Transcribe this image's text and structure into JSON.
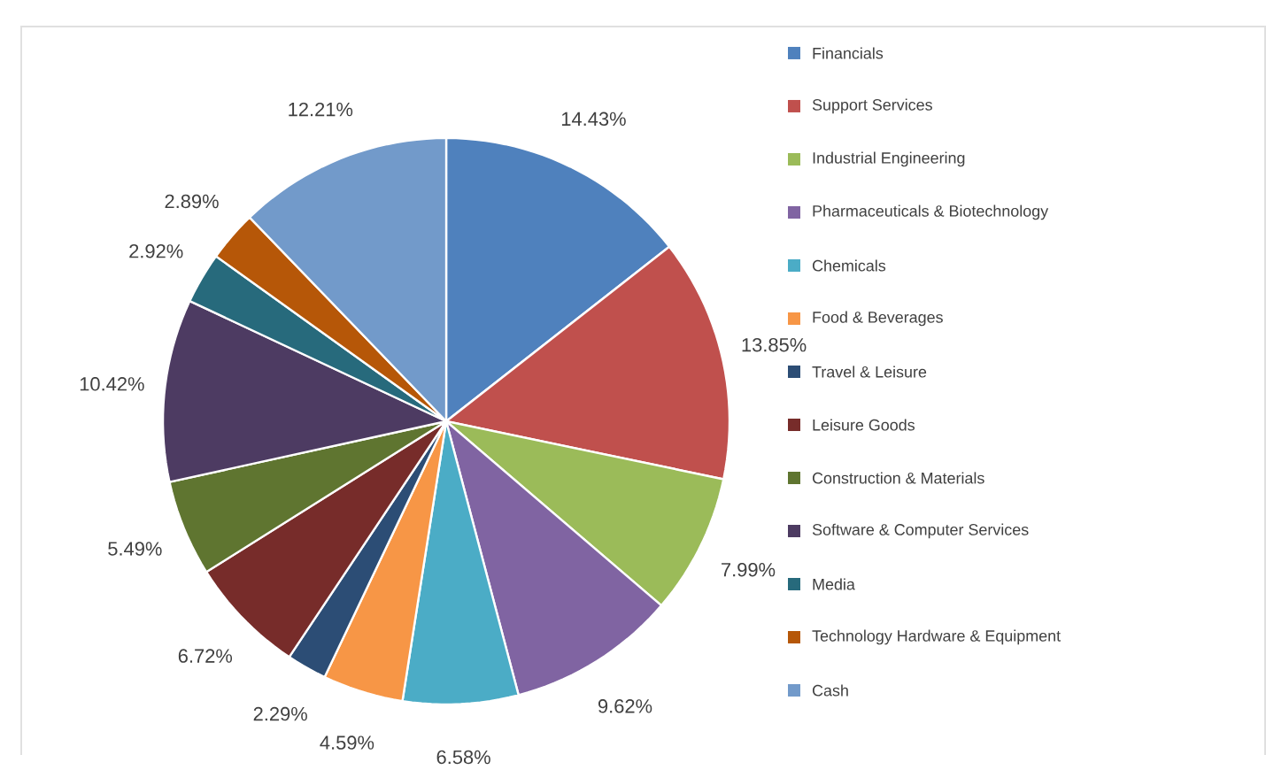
{
  "chart_data": {
    "type": "pie",
    "categories": [
      "Financials",
      "Support Services",
      "Industrial Engineering",
      "Pharmaceuticals & Biotechnology",
      "Chemicals",
      "Food & Beverages",
      "Travel & Leisure",
      "Leisure Goods",
      "Construction & Materials",
      "Software & Computer Services",
      "Media",
      "Technology Hardware & Equipment",
      "Cash"
    ],
    "values": [
      14.43,
      13.85,
      7.99,
      9.62,
      6.58,
      4.59,
      2.29,
      6.72,
      5.49,
      10.42,
      2.92,
      2.89,
      12.21
    ],
    "value_labels": [
      "14.43%",
      "13.85%",
      "7.99%",
      "9.62%",
      "6.58%",
      "4.59%",
      "2.29%",
      "6.72%",
      "5.49%",
      "10.42%",
      "2.92%",
      "2.89%",
      "12.21%"
    ],
    "colors": [
      "#4f81bd",
      "#c0504d",
      "#9bbb59",
      "#8064a2",
      "#4bacc6",
      "#f79646",
      "#2c4d75",
      "#772c2a",
      "#5f7530",
      "#4d3b62",
      "#276a7c",
      "#b65708",
      "#729aca"
    ],
    "legend": "right"
  }
}
